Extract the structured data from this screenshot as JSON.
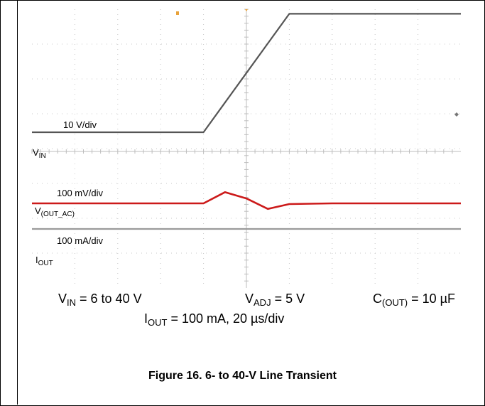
{
  "chart_data": {
    "type": "line",
    "title": "",
    "xlabel": "",
    "ylabel": "",
    "x_unit": "µs",
    "x_div": 20,
    "x_divisions": 10,
    "grid": true,
    "x": [
      0,
      30,
      40,
      60,
      80,
      90,
      100,
      110,
      120,
      140,
      160,
      180,
      200
    ],
    "series": [
      {
        "name": "V_IN",
        "color": "#555555",
        "values": [
          6,
          6,
          6,
          6,
          6,
          14.5,
          23,
          31.5,
          40,
          40,
          40,
          40,
          40
        ]
      },
      {
        "name": "V_(OUT_AC)",
        "color": "#cc1a1a",
        "values": [
          0,
          0,
          0,
          0,
          0,
          80,
          35,
          -40,
          -5,
          0,
          0,
          0,
          0
        ]
      },
      {
        "name": "I_OUT",
        "color": "#9a9a9a",
        "values": [
          100,
          100,
          100,
          100,
          100,
          100,
          100,
          100,
          100,
          100,
          100,
          100,
          100
        ]
      }
    ],
    "channels": {
      "vin": {
        "scale": "10 V/div",
        "label": "V",
        "sub": "IN"
      },
      "vout": {
        "scale": "100 mV/div",
        "label": "V",
        "sub": "(OUT_AC)"
      },
      "iout": {
        "scale": "100 mA/div",
        "label": "I",
        "sub": "OUT"
      }
    }
  },
  "conditions": {
    "vin_main": "V",
    "vin_sub": "IN",
    "vin_rest": " = 6 to 40 V",
    "vadj_main": "V",
    "vadj_sub": "ADJ",
    "vadj_rest": " = 5 V",
    "cout_main": "C",
    "cout_sub": "(OUT)",
    "cout_rest": " = 10 µF",
    "iout_main": "I",
    "iout_sub": "OUT",
    "iout_rest": " = 100 mA, 20 µs/div"
  },
  "caption": "Figure 16. 6- to 40-V Line Transient",
  "colors": {
    "vin": "#555555",
    "vout": "#cc1a1a",
    "iout": "#9a9a9a",
    "marker": "#e8a23a"
  }
}
